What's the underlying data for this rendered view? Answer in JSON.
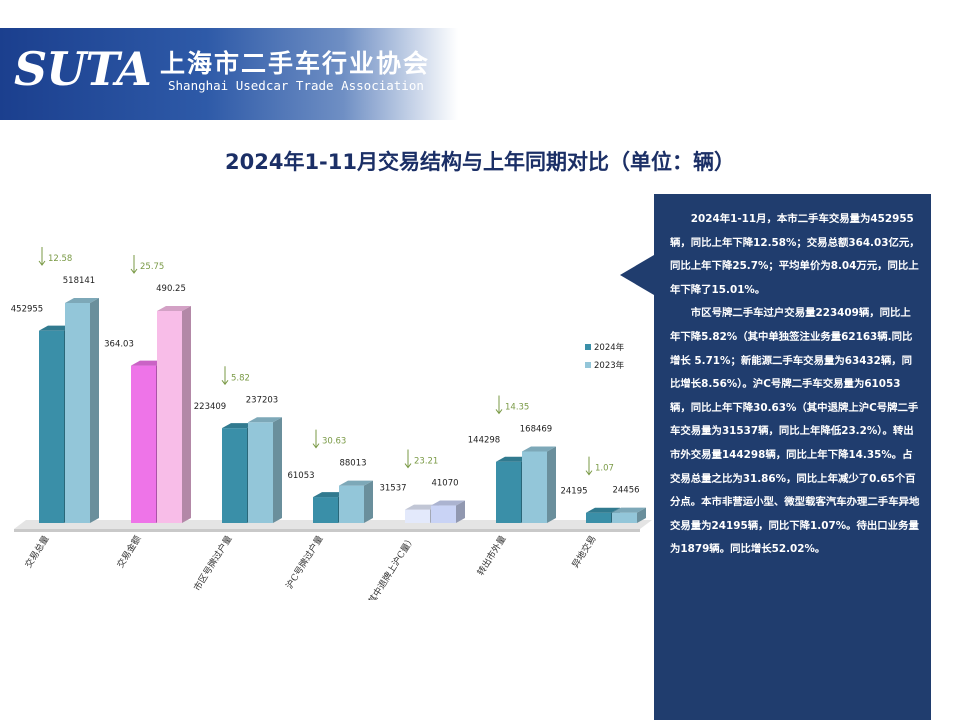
{
  "header": {
    "logo_text": "SUTA",
    "org_name_cn": "上海市二手车行业协会",
    "org_name_en": "Shanghai Usedcar Trade Association"
  },
  "title": "2024年1-11月交易结构与上年同期对比（单位：辆）",
  "chart_data": {
    "type": "bar",
    "categories": [
      "交易总量",
      "交易金额",
      "市区号牌过户量",
      "沪C号牌过户量",
      "（其中退牌上沪C量）",
      "转出市外量",
      "异地交易"
    ],
    "series": [
      {
        "name": "2024年",
        "values": [
          452955,
          364.03,
          223409,
          61053,
          31537,
          144298,
          24195
        ],
        "color": "#3a8fa8"
      },
      {
        "name": "2023年",
        "values": [
          518141,
          490.25,
          237203,
          88013,
          41070,
          168469,
          24456
        ],
        "color": "#93c6d9"
      }
    ],
    "change_pct": [
      "12.58",
      "25.75",
      "5.82",
      "30.63",
      "23.21",
      "14.35",
      "1.07"
    ],
    "change_direction": "down",
    "legend_position": "right",
    "highlight_colors": {
      "amount_2024": "#ee74e8",
      "amount_2023": "#f8bde8",
      "special_2024": "#e3e9fb",
      "special_2023": "#c9d3f5"
    },
    "grid": false
  },
  "notes": {
    "paragraphs": [
      "2024年1-11月，本市二手车交易量为452955辆，同比上年下降12.58%；交易总额364.03亿元，同比上年下降25.7%；平均单价为8.04万元，同比上年下降了15.01%。",
      "市区号牌二手车过户交易量223409辆，同比上年下降5.82%（其中单独签注业务量62163辆.同比增长 5.71%；新能源二手车交易量为63432辆，同比增长8.56%）。沪C号牌二手车交易量为61053辆，同比上年下降30.63%（其中退牌上沪C号牌二手车交易量为31537辆，同比上年降低23.2%）。转出市外交易量144298辆，同比上年下降14.35%。占交易总量之比为31.86%，同比上年减少了0.65个百分点。本市非营运小型、微型载客汽车办理二手车异地交易量为24195辆，同比下降1.07%。待出口业务量为1879辆。同比增长52.02%。"
    ]
  }
}
